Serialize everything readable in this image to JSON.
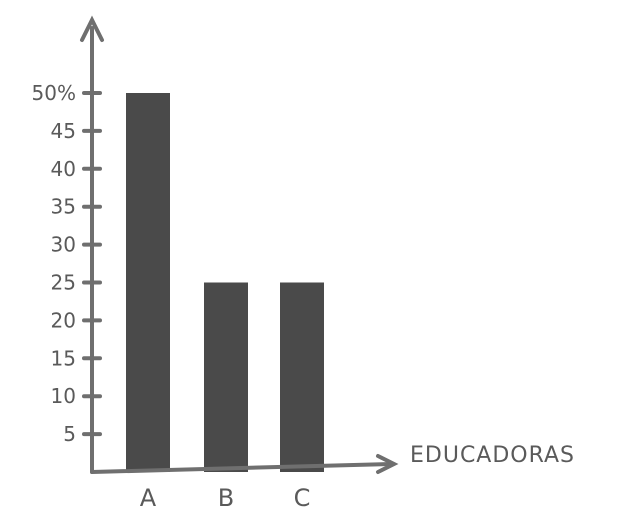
{
  "chart_data": {
    "type": "bar",
    "title": "",
    "xlabel": "EDUCADORAS",
    "ylabel": "",
    "categories": [
      "A",
      "B",
      "C"
    ],
    "values": [
      50,
      25,
      25
    ],
    "ylim": [
      0,
      50
    ],
    "y_ticks": [
      5,
      10,
      15,
      20,
      25,
      30,
      35,
      40,
      45,
      50
    ],
    "y_tick_labels": [
      "5",
      "10",
      "15",
      "20",
      "25",
      "30",
      "35",
      "40",
      "45",
      "50%"
    ],
    "grid": false,
    "legend": "none",
    "bar_color": "#4a4a4a",
    "axis_color": "#6f6f6f",
    "text_color": "#5a5a5a"
  }
}
